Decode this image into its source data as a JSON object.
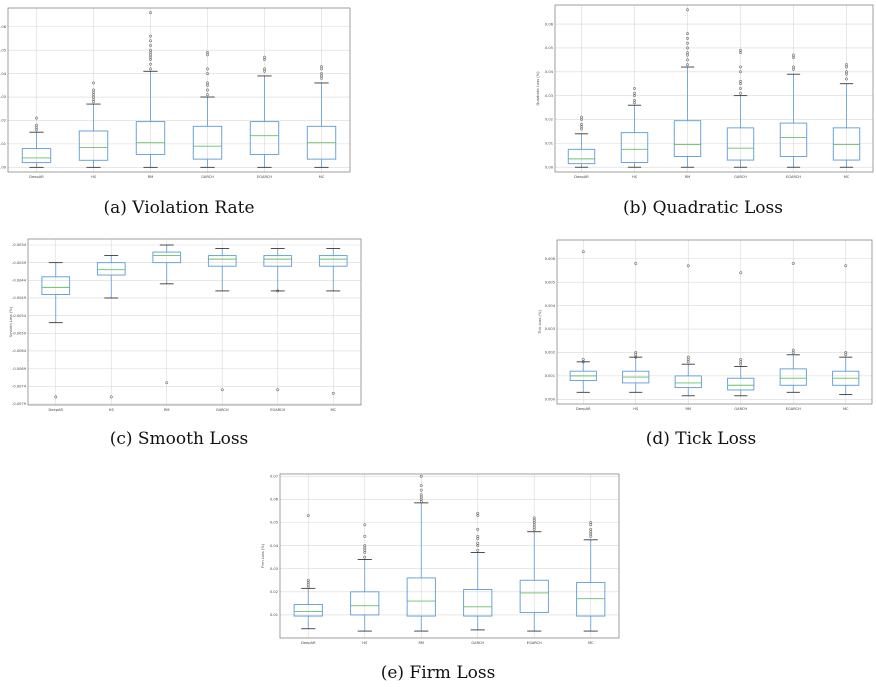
{
  "colors": {
    "box": "#5b9bd5",
    "median": "#6abf69",
    "grid": "#d9d9d9",
    "frame": "#888888",
    "flier": "#444444"
  },
  "captions": {
    "a": "(a) Violation Rate",
    "b": "(b) Quadratic Loss",
    "c": "(c) Smooth Loss",
    "d": "(d) Tick Loss",
    "e": "(e) Firm Loss"
  },
  "chart_data": [
    {
      "type": "box",
      "ylabel": "Violation Rate",
      "categories": [
        "DeepAR",
        "HS",
        "RM",
        "GARCH",
        "EGARCH",
        "MC"
      ],
      "ylim": [
        -0.002,
        0.068
      ],
      "yticks": [
        0.0,
        0.01,
        0.02,
        0.03,
        0.04,
        0.05,
        0.06
      ],
      "ytick_labels": [
        "0.00",
        "0.01",
        "0.02",
        "0.03",
        "0.04",
        "0.05",
        "0.06"
      ],
      "boxes": [
        {
          "min": 0.0,
          "q1": 0.002,
          "median": 0.004,
          "q3": 0.008,
          "max": 0.015,
          "fliers": [
            0.016,
            0.017,
            0.018,
            0.021
          ]
        },
        {
          "min": 0.0,
          "q1": 0.003,
          "median": 0.0085,
          "q3": 0.0155,
          "max": 0.027,
          "fliers": [
            0.028,
            0.029,
            0.03,
            0.031,
            0.032,
            0.033,
            0.036
          ]
        },
        {
          "min": 0.0,
          "q1": 0.0055,
          "median": 0.0105,
          "q3": 0.0195,
          "max": 0.041,
          "fliers": [
            0.042,
            0.044,
            0.046,
            0.047,
            0.048,
            0.049,
            0.05,
            0.052,
            0.054,
            0.056,
            0.066
          ]
        },
        {
          "min": 0.0,
          "q1": 0.0035,
          "median": 0.009,
          "q3": 0.0175,
          "max": 0.03,
          "fliers": [
            0.031,
            0.033,
            0.035,
            0.036,
            0.04,
            0.042,
            0.048,
            0.049
          ]
        },
        {
          "min": 0.0,
          "q1": 0.0055,
          "median": 0.0135,
          "q3": 0.0195,
          "max": 0.039,
          "fliers": [
            0.041,
            0.042,
            0.046,
            0.047
          ]
        },
        {
          "min": 0.0,
          "q1": 0.0035,
          "median": 0.0105,
          "q3": 0.0175,
          "max": 0.036,
          "fliers": [
            0.038,
            0.039,
            0.04,
            0.042,
            0.043
          ]
        }
      ]
    },
    {
      "type": "box",
      "ylabel": "Quadratic Loss (%)",
      "categories": [
        "DeepAR",
        "HS",
        "RM",
        "GARCH",
        "EGARCH",
        "MC"
      ],
      "ylim": [
        -0.002,
        0.068
      ],
      "yticks": [
        0.0,
        0.01,
        0.02,
        0.03,
        0.04,
        0.05,
        0.06
      ],
      "ytick_labels": [
        "0.00",
        "0.01",
        "0.02",
        "0.03",
        "0.04",
        "0.05",
        "0.06"
      ],
      "boxes": [
        {
          "min": 0.0,
          "q1": 0.0015,
          "median": 0.0035,
          "q3": 0.0075,
          "max": 0.014,
          "fliers": [
            0.016,
            0.017,
            0.018,
            0.02,
            0.021
          ]
        },
        {
          "min": 0.0,
          "q1": 0.002,
          "median": 0.0075,
          "q3": 0.0145,
          "max": 0.026,
          "fliers": [
            0.027,
            0.028,
            0.03,
            0.031,
            0.033
          ]
        },
        {
          "min": 0.0,
          "q1": 0.0045,
          "median": 0.0095,
          "q3": 0.0195,
          "max": 0.042,
          "fliers": [
            0.043,
            0.045,
            0.047,
            0.048,
            0.05,
            0.052,
            0.054,
            0.056,
            0.066
          ]
        },
        {
          "min": 0.0,
          "q1": 0.003,
          "median": 0.008,
          "q3": 0.0165,
          "max": 0.03,
          "fliers": [
            0.031,
            0.033,
            0.035,
            0.036,
            0.04,
            0.042,
            0.048,
            0.049
          ]
        },
        {
          "min": 0.0,
          "q1": 0.0045,
          "median": 0.0125,
          "q3": 0.0185,
          "max": 0.039,
          "fliers": [
            0.041,
            0.042,
            0.046,
            0.047
          ]
        },
        {
          "min": 0.0,
          "q1": 0.003,
          "median": 0.0095,
          "q3": 0.0165,
          "max": 0.035,
          "fliers": [
            0.037,
            0.039,
            0.04,
            0.042,
            0.043
          ]
        }
      ]
    },
    {
      "type": "box",
      "ylabel": "Smooth Loss (%)",
      "categories": [
        "DeepAR",
        "HS",
        "RM",
        "GARCH",
        "EGARCH",
        "MC"
      ],
      "ylim": [
        -0.00793,
        -0.00323
      ],
      "yticks": [
        -0.0079,
        -0.0074,
        -0.0069,
        -0.0064,
        -0.0059,
        -0.0054,
        -0.0049,
        -0.0044,
        -0.0039,
        -0.0034
      ],
      "ytick_labels": [
        "-0.0079",
        "-0.0074",
        "-0.0069",
        "-0.0064",
        "-0.0059",
        "-0.0054",
        "-0.0049",
        "-0.0044",
        "-0.0039",
        "-0.0034"
      ],
      "boxes": [
        {
          "min": -0.0056,
          "q1": -0.0048,
          "median": -0.0046,
          "q3": -0.0043,
          "max": -0.0039,
          "fliers": [
            -0.0077
          ]
        },
        {
          "min": -0.0049,
          "q1": -0.00425,
          "median": -0.0041,
          "q3": -0.0039,
          "max": -0.0037,
          "fliers": [
            -0.0077
          ]
        },
        {
          "min": -0.0045,
          "q1": -0.0039,
          "median": -0.0037,
          "q3": -0.0036,
          "max": -0.0034,
          "fliers": [
            -0.0073
          ]
        },
        {
          "min": -0.0047,
          "q1": -0.004,
          "median": -0.0038,
          "q3": -0.0037,
          "max": -0.0035,
          "fliers": [
            -0.0075
          ]
        },
        {
          "min": -0.0047,
          "q1": -0.004,
          "median": -0.0038,
          "q3": -0.0037,
          "max": -0.0035,
          "fliers": [
            -0.0047,
            -0.0075
          ]
        },
        {
          "min": -0.0047,
          "q1": -0.004,
          "median": -0.0038,
          "q3": -0.0037,
          "max": -0.0035,
          "fliers": [
            -0.0076
          ]
        }
      ]
    },
    {
      "type": "box",
      "ylabel": "Tick Loss (%)",
      "categories": [
        "DeepAR",
        "HS",
        "RM",
        "GARCH",
        "EGARCH",
        "MC"
      ],
      "ylim": [
        -0.0002,
        0.0068
      ],
      "yticks": [
        0.0,
        0.001,
        0.002,
        0.003,
        0.004,
        0.005,
        0.006
      ],
      "ytick_labels": [
        "0.000",
        "0.001",
        "0.002",
        "0.003",
        "0.004",
        "0.005",
        "0.006"
      ],
      "boxes": [
        {
          "min": 0.0003,
          "q1": 0.0008,
          "median": 0.001,
          "q3": 0.0012,
          "max": 0.0016,
          "fliers": [
            0.0016,
            0.0017,
            0.0063
          ]
        },
        {
          "min": 0.0003,
          "q1": 0.0007,
          "median": 0.00095,
          "q3": 0.0012,
          "max": 0.0018,
          "fliers": [
            0.0018,
            0.0019,
            0.002,
            0.0058
          ]
        },
        {
          "min": 0.00015,
          "q1": 0.0005,
          "median": 0.0007,
          "q3": 0.001,
          "max": 0.0015,
          "fliers": [
            0.0016,
            0.0017,
            0.0018,
            0.0057
          ]
        },
        {
          "min": 0.00015,
          "q1": 0.0004,
          "median": 0.0006,
          "q3": 0.0009,
          "max": 0.0014,
          "fliers": [
            0.0015,
            0.0016,
            0.0017,
            0.0054
          ]
        },
        {
          "min": 0.0003,
          "q1": 0.0006,
          "median": 0.0009,
          "q3": 0.0013,
          "max": 0.0019,
          "fliers": [
            0.002,
            0.0021,
            0.0058
          ]
        },
        {
          "min": 0.0002,
          "q1": 0.0006,
          "median": 0.0009,
          "q3": 0.0012,
          "max": 0.0018,
          "fliers": [
            0.0019,
            0.002,
            0.0057
          ]
        }
      ]
    },
    {
      "type": "box",
      "ylabel": "Firm Loss (%)",
      "categories": [
        "DeepAR",
        "HS",
        "RM",
        "GARCH",
        "EGARCH",
        "MC"
      ],
      "ylim": [
        0.0,
        0.071
      ],
      "yticks": [
        0.01,
        0.02,
        0.03,
        0.04,
        0.05,
        0.06,
        0.07
      ],
      "ytick_labels": [
        "0.01",
        "0.02",
        "0.03",
        "0.04",
        "0.05",
        "0.06",
        "0.07"
      ],
      "boxes": [
        {
          "min": 0.004,
          "q1": 0.0095,
          "median": 0.0115,
          "q3": 0.0145,
          "max": 0.0215,
          "fliers": [
            0.022,
            0.023,
            0.024,
            0.025,
            0.053
          ]
        },
        {
          "min": 0.003,
          "q1": 0.01,
          "median": 0.014,
          "q3": 0.02,
          "max": 0.034,
          "fliers": [
            0.035,
            0.037,
            0.038,
            0.039,
            0.04,
            0.044,
            0.049
          ]
        },
        {
          "min": 0.003,
          "q1": 0.0095,
          "median": 0.016,
          "q3": 0.026,
          "max": 0.0585,
          "fliers": [
            0.059,
            0.06,
            0.061,
            0.062,
            0.064,
            0.066,
            0.07
          ]
        },
        {
          "min": 0.0035,
          "q1": 0.0095,
          "median": 0.0135,
          "q3": 0.021,
          "max": 0.037,
          "fliers": [
            0.038,
            0.04,
            0.041,
            0.043,
            0.044,
            0.047,
            0.053,
            0.054
          ]
        },
        {
          "min": 0.003,
          "q1": 0.011,
          "median": 0.0195,
          "q3": 0.025,
          "max": 0.046,
          "fliers": [
            0.047,
            0.048,
            0.049,
            0.05,
            0.051,
            0.052
          ]
        },
        {
          "min": 0.003,
          "q1": 0.0095,
          "median": 0.017,
          "q3": 0.024,
          "max": 0.0425,
          "fliers": [
            0.044,
            0.045,
            0.046,
            0.047,
            0.049,
            0.05
          ]
        }
      ]
    }
  ]
}
